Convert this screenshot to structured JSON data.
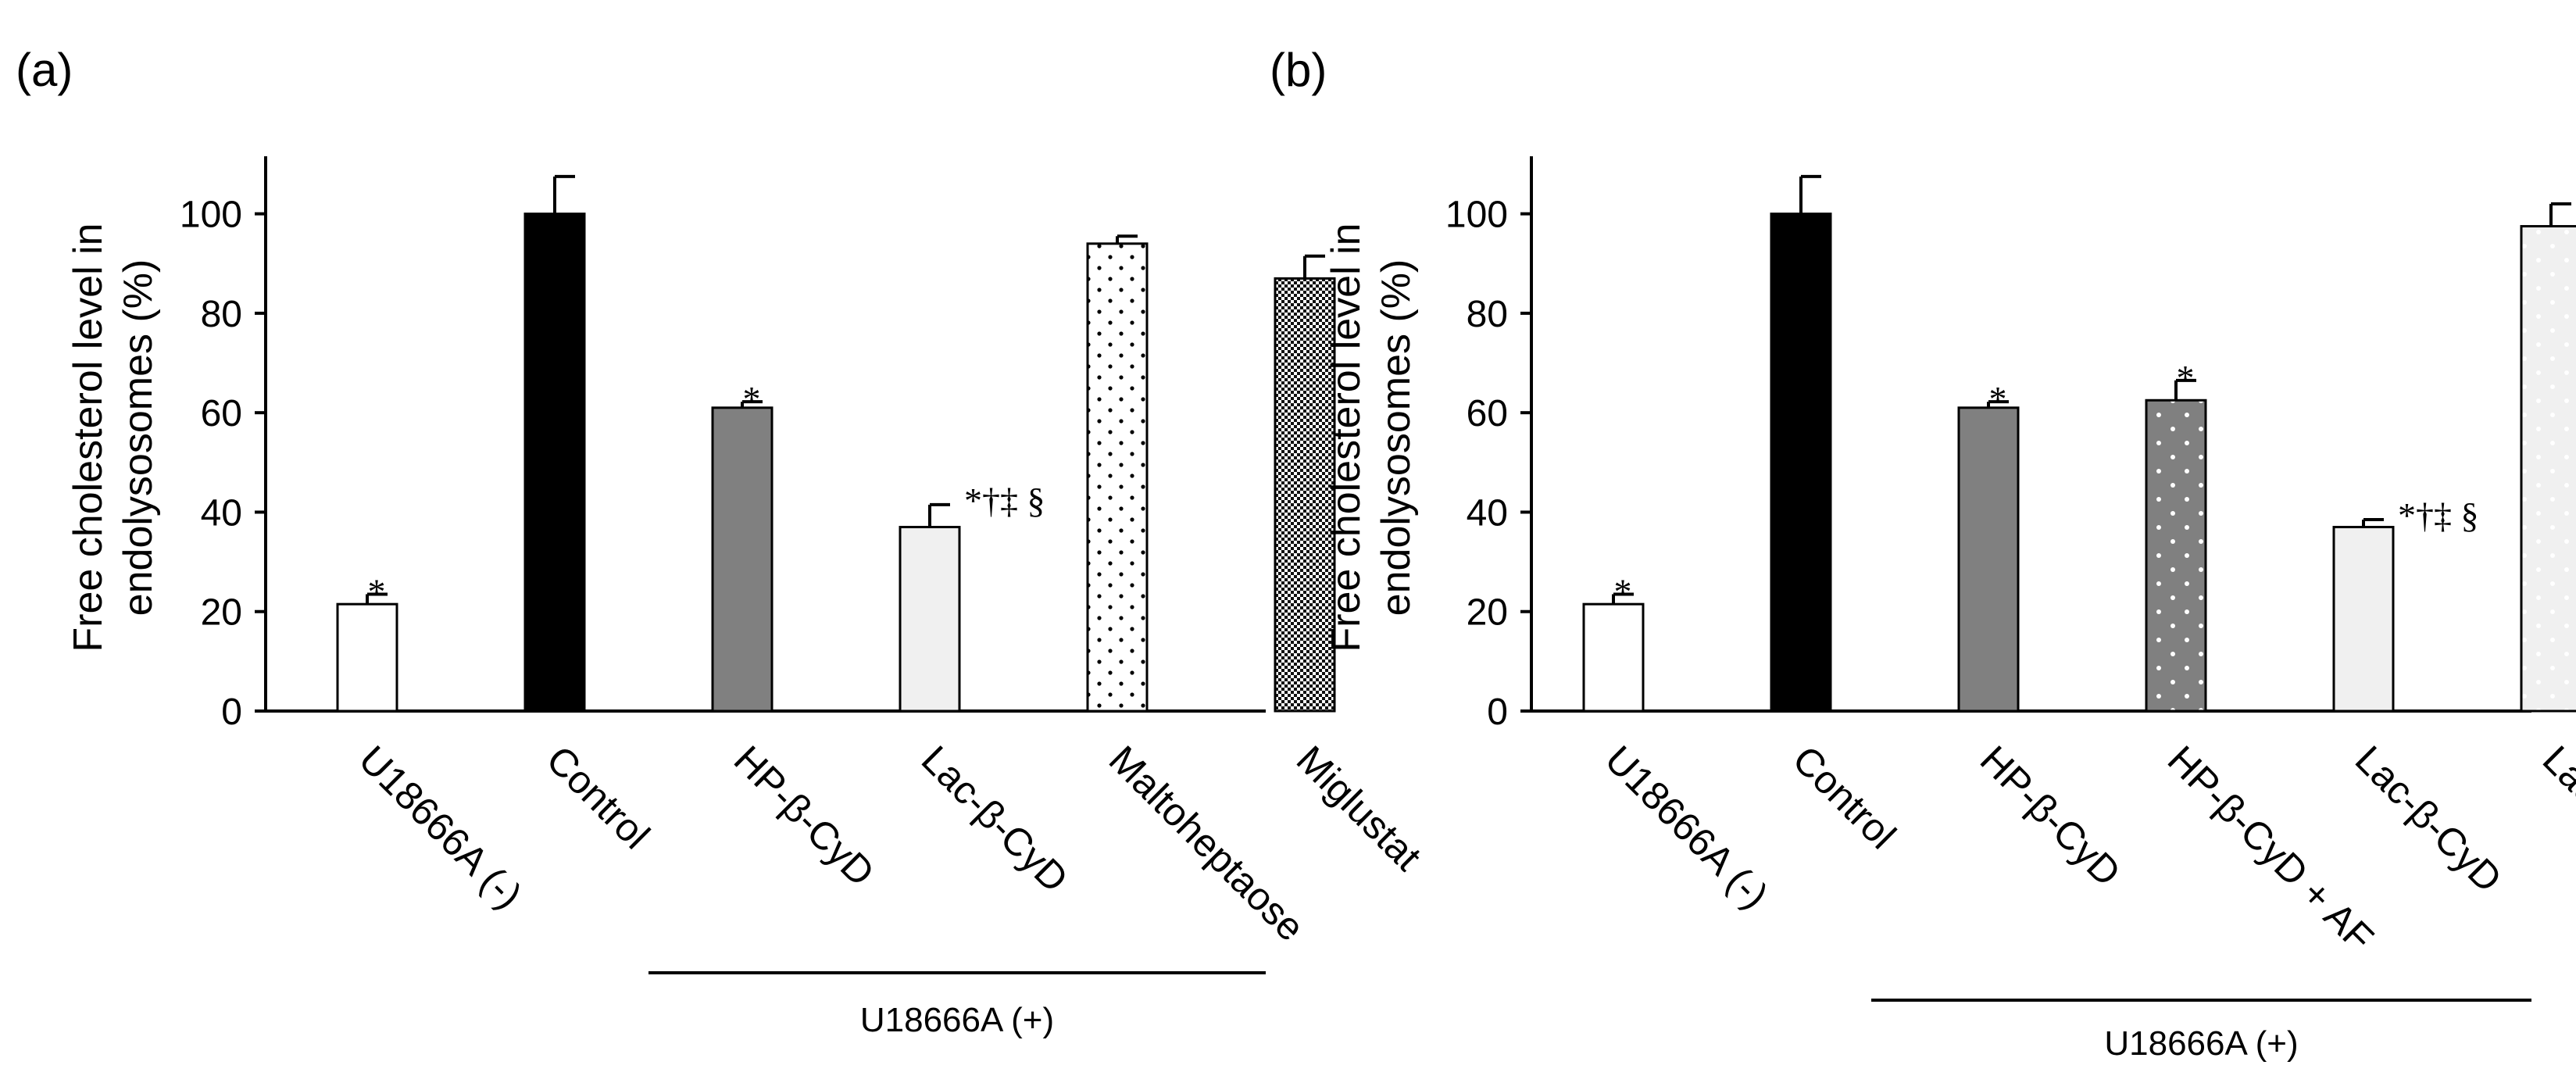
{
  "chart_data": [
    {
      "type": "bar",
      "panel_label": "(a)",
      "ylabel": [
        "Free cholesterol level in",
        "endolysosomes (%)"
      ],
      "ylim": [
        0,
        110
      ],
      "yticks": [
        0,
        20,
        40,
        60,
        80,
        100
      ],
      "categories": [
        "U18666A (-)",
        "Control",
        "HP-β-CyD",
        "Lac-β-CyD",
        "Maltoheptaose",
        "Miglustat"
      ],
      "values": [
        21.5,
        100,
        61,
        37,
        94,
        87
      ],
      "errors": [
        2,
        7.5,
        1.2,
        4.5,
        1.5,
        4.5
      ],
      "fills": [
        "white",
        "black",
        "gray",
        "light",
        "dots",
        "checker"
      ],
      "significance": [
        "*",
        "",
        "*",
        "*†‡ §",
        "",
        ""
      ],
      "group_label": "U18666A (+)",
      "group_range": [
        2,
        5
      ]
    },
    {
      "type": "bar",
      "panel_label": "(b)",
      "ylabel": [
        "Free cholesterol level in",
        "endolysosomes (%)"
      ],
      "ylim": [
        0,
        110
      ],
      "yticks": [
        0,
        20,
        40,
        60,
        80,
        100
      ],
      "categories": [
        "U18666A (-)",
        "Control",
        "HP-β-CyD",
        "HP-β-CyD + AF",
        "Lac-β-CyD",
        "Lac-β-CyD + AF"
      ],
      "values": [
        21.5,
        100,
        61,
        62.5,
        37,
        97.5
      ],
      "errors": [
        2,
        7.5,
        1.2,
        4,
        1.5,
        4.5
      ],
      "fills": [
        "white",
        "black",
        "gray",
        "graydots",
        "light",
        "lightdots"
      ],
      "significance": [
        "*",
        "",
        "*",
        "*",
        "*†‡ §",
        ""
      ],
      "group_label": "U18666A (+)",
      "group_range": [
        2,
        5
      ]
    }
  ]
}
